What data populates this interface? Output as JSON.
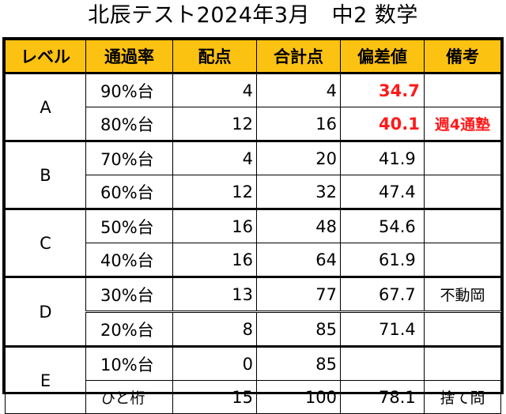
{
  "title": "北辰テスト2024年3月　中2 数学",
  "table": {
    "headers": [
      "レベル",
      "通過率",
      "配点",
      "合計点",
      "偏差値",
      "備考"
    ],
    "levels": [
      {
        "label": "A",
        "rows": [
          {
            "pct": "90%台",
            "score": "4",
            "total": "4",
            "deviation": "34.7",
            "note": "",
            "highlight": true
          },
          {
            "pct": "80%台",
            "score": "12",
            "total": "16",
            "deviation": "40.1",
            "note": "週4通塾",
            "highlight": true
          }
        ]
      },
      {
        "label": "B",
        "rows": [
          {
            "pct": "70%台",
            "score": "4",
            "total": "20",
            "deviation": "41.9",
            "note": ""
          },
          {
            "pct": "60%台",
            "score": "12",
            "total": "32",
            "deviation": "47.4",
            "note": ""
          }
        ]
      },
      {
        "label": "C",
        "rows": [
          {
            "pct": "50%台",
            "score": "16",
            "total": "48",
            "deviation": "54.6",
            "note": ""
          },
          {
            "pct": "40%台",
            "score": "16",
            "total": "64",
            "deviation": "61.9",
            "note": ""
          }
        ]
      },
      {
        "label": "D",
        "rows": [
          {
            "pct": "30%台",
            "score": "13",
            "total": "77",
            "deviation": "67.7",
            "note": "不動岡"
          },
          {
            "pct": "20%台",
            "score": "8",
            "total": "85",
            "deviation": "71.4",
            "note": ""
          }
        ]
      },
      {
        "label": "E",
        "rows": [
          {
            "pct": "10%台",
            "score": "0",
            "total": "85",
            "deviation": "",
            "note": ""
          },
          {
            "pct": "ひと桁",
            "score": "15",
            "total": "100",
            "deviation": "78.1",
            "note": "捨て問"
          }
        ]
      }
    ]
  },
  "colors": {
    "header_bg": "#fcc212",
    "highlight_text": "#ff1a1a"
  }
}
